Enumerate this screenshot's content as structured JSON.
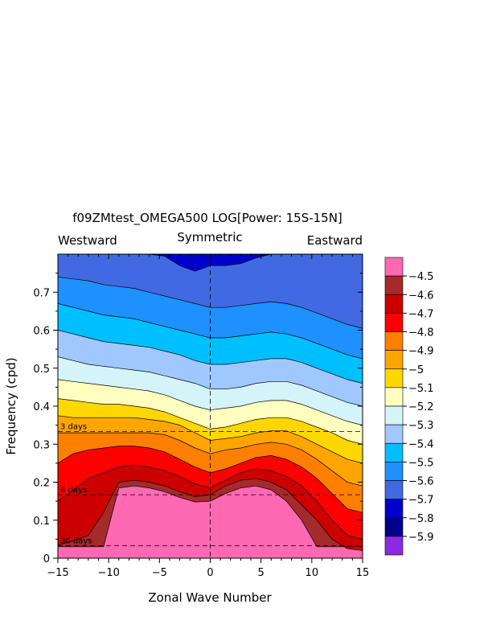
{
  "chart_data": {
    "type": "heatmap",
    "title": "f09ZMtest_OMEGA500 LOG[Power: 15S-15N]",
    "subtitle_left": "Westward",
    "subtitle_center": "Symmetric",
    "subtitle_right": "Eastward",
    "xlabel": "Zonal Wave Number",
    "ylabel": "Frequency (cpd)",
    "xlim": [
      -15,
      15
    ],
    "ylim": [
      0,
      0.8
    ],
    "x_ticks": [
      -15,
      -10,
      -5,
      0,
      5,
      10,
      15
    ],
    "x_tick_labels": [
      "−15",
      "−10",
      "−5",
      "0",
      "5",
      "10",
      "15"
    ],
    "y_ticks": [
      0,
      0.1,
      0.2,
      0.3,
      0.4,
      0.5,
      0.6,
      0.7
    ],
    "y_tick_labels": [
      "0",
      "0.1",
      "0.2",
      "0.3",
      "0.4",
      "0.5",
      "0.6",
      "0.7"
    ],
    "period_lines": [
      {
        "label": "3 days",
        "frequency": 0.333
      },
      {
        "label": "6 days",
        "frequency": 0.167
      },
      {
        "label": "30 days",
        "frequency": 0.033
      }
    ],
    "colorbar": {
      "labels": [
        "−4.5",
        "−4.6",
        "−4.7",
        "−4.8",
        "−4.9",
        "−5",
        "−5.1",
        "−5.2",
        "−5.3",
        "−5.4",
        "−5.5",
        "−5.6",
        "−5.7",
        "−5.8",
        "−5.9"
      ],
      "colors": [
        "#ff69b4",
        "#a52a2a",
        "#cd0000",
        "#ff0000",
        "#ff7f00",
        "#ffa500",
        "#ffd700",
        "#ffffc0",
        "#d4f4fa",
        "#a0c8ff",
        "#00bfff",
        "#1e90ff",
        "#4169e1",
        "#0000cd",
        "#00008b",
        "#8a2be2"
      ]
    },
    "level_boundaries": [
      {
        "level": "−4.5",
        "freq": [
          0.03,
          0.03,
          0.03,
          0.03,
          0.185,
          0.19,
          0.185,
          0.175,
          0.16,
          0.148,
          0.15,
          0.17,
          0.185,
          0.19,
          0.18,
          0.15,
          0.1,
          0.03,
          0.03,
          0.03,
          0.03
        ]
      },
      {
        "level": "−4.6",
        "freq": [
          0.035,
          0.045,
          0.06,
          0.12,
          0.2,
          0.205,
          0.2,
          0.19,
          0.175,
          0.162,
          0.167,
          0.19,
          0.205,
          0.21,
          0.2,
          0.18,
          0.14,
          0.1,
          0.05,
          0.025,
          0.02
        ]
      },
      {
        "level": "−4.7",
        "freq": [
          0.15,
          0.18,
          0.21,
          0.225,
          0.24,
          0.245,
          0.24,
          0.23,
          0.215,
          0.195,
          0.185,
          0.205,
          0.225,
          0.235,
          0.23,
          0.215,
          0.19,
          0.15,
          0.1,
          0.06,
          0.05
        ]
      },
      {
        "level": "−4.8",
        "freq": [
          0.25,
          0.275,
          0.285,
          0.29,
          0.295,
          0.295,
          0.29,
          0.28,
          0.26,
          0.24,
          0.225,
          0.235,
          0.25,
          0.265,
          0.27,
          0.26,
          0.24,
          0.21,
          0.17,
          0.13,
          0.12
        ]
      },
      {
        "level": "−4.9",
        "freq": [
          0.33,
          0.33,
          0.33,
          0.33,
          0.33,
          0.33,
          0.33,
          0.325,
          0.31,
          0.29,
          0.275,
          0.285,
          0.29,
          0.3,
          0.305,
          0.3,
          0.285,
          0.26,
          0.23,
          0.2,
          0.19
        ]
      },
      {
        "level": "−5",
        "freq": [
          0.375,
          0.37,
          0.37,
          0.37,
          0.37,
          0.37,
          0.365,
          0.36,
          0.35,
          0.33,
          0.31,
          0.315,
          0.32,
          0.33,
          0.335,
          0.335,
          0.32,
          0.3,
          0.28,
          0.26,
          0.25
        ]
      },
      {
        "level": "−5.1",
        "freq": [
          0.42,
          0.415,
          0.41,
          0.405,
          0.405,
          0.4,
          0.395,
          0.385,
          0.37,
          0.355,
          0.34,
          0.345,
          0.355,
          0.365,
          0.37,
          0.37,
          0.36,
          0.345,
          0.33,
          0.31,
          0.3
        ]
      },
      {
        "level": "−5.2",
        "freq": [
          0.47,
          0.465,
          0.46,
          0.455,
          0.45,
          0.445,
          0.44,
          0.43,
          0.415,
          0.4,
          0.39,
          0.395,
          0.4,
          0.41,
          0.415,
          0.415,
          0.405,
          0.39,
          0.375,
          0.36,
          0.35
        ]
      },
      {
        "level": "−5.3",
        "freq": [
          0.53,
          0.52,
          0.51,
          0.505,
          0.5,
          0.495,
          0.49,
          0.48,
          0.47,
          0.46,
          0.445,
          0.445,
          0.45,
          0.46,
          0.465,
          0.465,
          0.455,
          0.44,
          0.425,
          0.41,
          0.4
        ]
      },
      {
        "level": "−5.4",
        "freq": [
          0.6,
          0.59,
          0.58,
          0.57,
          0.565,
          0.56,
          0.555,
          0.545,
          0.535,
          0.52,
          0.51,
          0.51,
          0.515,
          0.52,
          0.525,
          0.525,
          0.515,
          0.5,
          0.485,
          0.47,
          0.46
        ]
      },
      {
        "level": "−5.5",
        "freq": [
          0.67,
          0.66,
          0.65,
          0.64,
          0.635,
          0.63,
          0.62,
          0.61,
          0.6,
          0.59,
          0.58,
          0.58,
          0.585,
          0.59,
          0.595,
          0.59,
          0.58,
          0.565,
          0.55,
          0.535,
          0.525
        ]
      },
      {
        "level": "−5.6",
        "freq": [
          0.74,
          0.735,
          0.73,
          0.72,
          0.715,
          0.71,
          0.7,
          0.69,
          0.68,
          0.67,
          0.66,
          0.66,
          0.665,
          0.67,
          0.675,
          0.67,
          0.66,
          0.645,
          0.63,
          0.615,
          0.605
        ]
      },
      {
        "level": "−5.7",
        "freq": [
          0.8,
          0.8,
          0.8,
          0.8,
          0.8,
          0.8,
          0.8,
          0.795,
          0.77,
          0.755,
          0.77,
          0.77,
          0.775,
          0.79,
          0.8,
          0.8,
          0.8,
          0.8,
          0.8,
          0.8,
          0.8
        ]
      }
    ]
  }
}
